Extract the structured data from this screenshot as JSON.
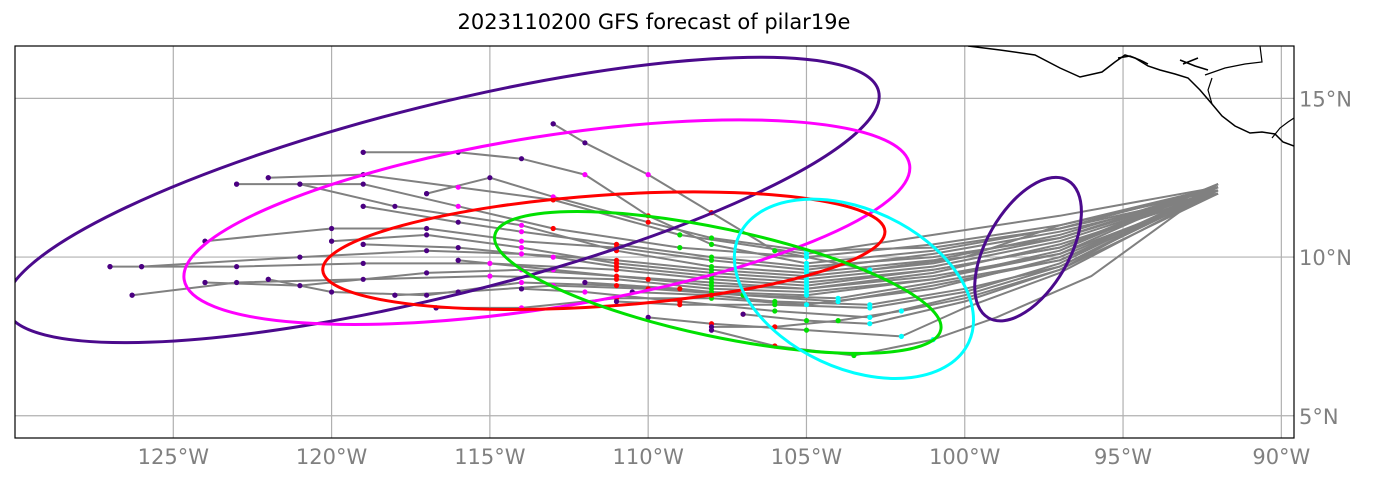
{
  "title": "2023110200 GFS forecast of pilar19e",
  "axes": {
    "lon_range": [
      -130,
      -89.6
    ],
    "lat_range": [
      4.3,
      16.65
    ],
    "x_ticks": [
      {
        "lon": -125,
        "label": "125°W"
      },
      {
        "lon": -120,
        "label": "120°W"
      },
      {
        "lon": -115,
        "label": "115°W"
      },
      {
        "lon": -110,
        "label": "110°W"
      },
      {
        "lon": -105,
        "label": "105°W"
      },
      {
        "lon": -100,
        "label": "100°W"
      },
      {
        "lon": -95,
        "label": "95°W"
      },
      {
        "lon": -90,
        "label": "90°W"
      }
    ],
    "y_ticks": [
      {
        "lat": 5,
        "label": "5°N"
      },
      {
        "lat": 10,
        "label": "10°N"
      },
      {
        "lat": 15,
        "label": "15°N"
      }
    ],
    "grid": true
  },
  "colors": {
    "track": "#808080",
    "grid": "#b0b0b0",
    "coast": "#000000"
  },
  "chart_data": {
    "type": "map",
    "tracks": [
      [
        [
          -92,
          12.2
        ],
        [
          -97,
          11.3
        ],
        [
          -101,
          10.7
        ],
        [
          -105,
          10.1
        ],
        [
          -109,
          10.7
        ],
        [
          -113,
          11.8
        ],
        [
          -116,
          12.2
        ],
        [
          -119,
          12.6
        ],
        [
          -122,
          12.5
        ]
      ],
      [
        [
          -92,
          12.1
        ],
        [
          -97,
          11.0
        ],
        [
          -101,
          10.4
        ],
        [
          -105,
          10.0
        ],
        [
          -109,
          10.3
        ],
        [
          -113,
          10.9
        ],
        [
          -116,
          11.6
        ],
        [
          -119,
          12.3
        ],
        [
          -123,
          12.3
        ]
      ],
      [
        [
          -92,
          12.0
        ],
        [
          -97,
          10.8
        ],
        [
          -101,
          10.1
        ],
        [
          -105,
          9.6
        ],
        [
          -108,
          9.9
        ],
        [
          -111,
          10.3
        ],
        [
          -114,
          10.5
        ],
        [
          -117,
          10.9
        ],
        [
          -120,
          10.9
        ],
        [
          -124,
          10.5
        ]
      ],
      [
        [
          -92,
          12.2
        ],
        [
          -97,
          10.6
        ],
        [
          -101,
          9.8
        ],
        [
          -105,
          9.4
        ],
        [
          -108,
          9.6
        ],
        [
          -111,
          9.9
        ],
        [
          -114,
          10.1
        ],
        [
          -117,
          10.2
        ],
        [
          -121,
          10.0
        ],
        [
          -126,
          9.7
        ]
      ],
      [
        [
          -92,
          12.1
        ],
        [
          -97,
          10.3
        ],
        [
          -101,
          9.6
        ],
        [
          -105,
          9.1
        ],
        [
          -108,
          9.3
        ],
        [
          -111,
          9.6
        ],
        [
          -115,
          9.8
        ],
        [
          -119,
          9.8
        ],
        [
          -123,
          9.7
        ],
        [
          -127,
          9.7
        ]
      ],
      [
        [
          -92,
          12.3
        ],
        [
          -97,
          10.1
        ],
        [
          -101,
          9.3
        ],
        [
          -105,
          8.9
        ],
        [
          -108,
          9.0
        ],
        [
          -111,
          9.3
        ],
        [
          -115,
          9.4
        ],
        [
          -119,
          9.3
        ],
        [
          -123,
          9.2
        ],
        [
          -126.3,
          8.8
        ]
      ],
      [
        [
          -92,
          12.0
        ],
        [
          -97,
          9.9
        ],
        [
          -101,
          9.1
        ],
        [
          -104,
          8.6
        ],
        [
          -107,
          8.8
        ],
        [
          -110,
          9.0
        ],
        [
          -113,
          9.1
        ],
        [
          -116,
          8.9
        ],
        [
          -118,
          8.8
        ]
      ],
      [
        [
          -92,
          12.2
        ],
        [
          -97,
          9.7
        ],
        [
          -100,
          8.8
        ],
        [
          -103,
          8.1
        ],
        [
          -106,
          8.3
        ],
        [
          -109,
          8.6
        ],
        [
          -112,
          8.9
        ],
        [
          -114,
          9.0
        ]
      ],
      [
        [
          -92,
          12.1
        ],
        [
          -97,
          9.5
        ],
        [
          -100,
          8.4
        ],
        [
          -102,
          7.5
        ],
        [
          -105,
          7.7
        ],
        [
          -108,
          7.9
        ],
        [
          -110,
          8.1
        ]
      ],
      [
        [
          -92,
          12.3
        ],
        [
          -96,
          9.4
        ],
        [
          -99,
          8.1
        ],
        [
          -101,
          7.4
        ],
        [
          -103.5,
          6.9
        ],
        [
          -106,
          7.2
        ],
        [
          -108,
          7.7
        ]
      ],
      [
        [
          -92,
          12.2
        ],
        [
          -97,
          11.0
        ],
        [
          -100,
          10.0
        ],
        [
          -103,
          9.6
        ],
        [
          -106,
          10.2
        ],
        [
          -108,
          11.4
        ],
        [
          -110,
          12.6
        ],
        [
          -112,
          13.6
        ],
        [
          -113,
          14.2
        ]
      ],
      [
        [
          -92,
          12.0
        ],
        [
          -97,
          10.9
        ],
        [
          -101,
          10.2
        ],
        [
          -105,
          9.8
        ],
        [
          -108,
          10.4
        ],
        [
          -110,
          11.3
        ],
        [
          -112,
          12.6
        ],
        [
          -114,
          13.1
        ],
        [
          -116,
          13.3
        ],
        [
          -119,
          13.3
        ]
      ],
      [
        [
          -92,
          12.2
        ],
        [
          -97,
          10.7
        ],
        [
          -101,
          9.9
        ],
        [
          -105,
          9.5
        ],
        [
          -108,
          9.7
        ],
        [
          -111,
          10.2
        ],
        [
          -114,
          11.0
        ],
        [
          -118,
          11.6
        ],
        [
          -121,
          12.3
        ]
      ],
      [
        [
          -92,
          12.1
        ],
        [
          -97,
          10.5
        ],
        [
          -101,
          9.7
        ],
        [
          -105,
          9.3
        ],
        [
          -108,
          9.5
        ],
        [
          -111,
          9.8
        ],
        [
          -114,
          10.3
        ],
        [
          -117,
          10.7
        ],
        [
          -120,
          10.5
        ]
      ],
      [
        [
          -92,
          12.0
        ],
        [
          -97,
          10.4
        ],
        [
          -101,
          9.5
        ],
        [
          -105,
          9.0
        ],
        [
          -108,
          9.2
        ],
        [
          -111,
          9.4
        ],
        [
          -114,
          9.6
        ],
        [
          -117,
          9.5
        ],
        [
          -121,
          9.1
        ],
        [
          -124,
          9.2
        ]
      ],
      [
        [
          -92,
          12.3
        ],
        [
          -97,
          10.2
        ],
        [
          -101,
          9.3
        ],
        [
          -105,
          8.8
        ],
        [
          -108,
          8.9
        ],
        [
          -111,
          9.1
        ],
        [
          -114,
          9.2
        ],
        [
          -117,
          8.8
        ],
        [
          -120,
          8.9
        ],
        [
          -122,
          9.3
        ]
      ],
      [
        [
          -92,
          12.1
        ],
        [
          -97,
          10.0
        ],
        [
          -101,
          9.0
        ],
        [
          -105,
          8.5
        ],
        [
          -108,
          8.7
        ],
        [
          -111,
          8.7
        ],
        [
          -114,
          8.4
        ],
        [
          -116.7,
          8.4
        ]
      ],
      [
        [
          -92,
          12.2
        ],
        [
          -97,
          9.8
        ],
        [
          -100,
          8.9
        ],
        [
          -103,
          8.4
        ],
        [
          -106,
          8.5
        ],
        [
          -109,
          8.5
        ],
        [
          -111,
          8.6
        ]
      ],
      [
        [
          -92,
          12.0
        ],
        [
          -97,
          9.6
        ],
        [
          -100,
          8.6
        ],
        [
          -103,
          7.9
        ],
        [
          -105,
          8.0
        ],
        [
          -107,
          8.2
        ]
      ],
      [
        [
          -92,
          12.2
        ],
        [
          -97,
          10.9
        ],
        [
          -101,
          10.3
        ],
        [
          -105,
          10.2
        ],
        [
          -108,
          10.6
        ],
        [
          -110,
          11.1
        ],
        [
          -113,
          11.9
        ],
        [
          -115,
          12.5
        ],
        [
          -117,
          12.0
        ]
      ],
      [
        [
          -92,
          12.1
        ],
        [
          -97,
          10.6
        ],
        [
          -101,
          10.0
        ],
        [
          -105,
          9.7
        ],
        [
          -108,
          10.0
        ],
        [
          -111,
          10.4
        ],
        [
          -114,
          10.8
        ],
        [
          -116,
          11.1
        ],
        [
          -119,
          11.6
        ]
      ],
      [
        [
          -92,
          12.3
        ],
        [
          -97,
          10.3
        ],
        [
          -101,
          9.6
        ],
        [
          -105,
          9.2
        ],
        [
          -108,
          9.4
        ],
        [
          -111,
          9.7
        ],
        [
          -113,
          10.0
        ],
        [
          -116,
          10.3
        ],
        [
          -119,
          10.4
        ]
      ],
      [
        [
          -92,
          12.0
        ],
        [
          -97,
          10.1
        ],
        [
          -101,
          9.4
        ],
        [
          -105,
          9.0
        ],
        [
          -108,
          9.1
        ],
        [
          -110,
          9.3
        ],
        [
          -113,
          9.6
        ],
        [
          -116,
          9.9
        ]
      ],
      [
        [
          -92,
          12.2
        ],
        [
          -97,
          9.9
        ],
        [
          -101,
          9.2
        ],
        [
          -104,
          8.7
        ],
        [
          -107,
          8.8
        ],
        [
          -109,
          9.0
        ],
        [
          -112,
          9.2
        ]
      ],
      [
        [
          -92,
          12.1
        ],
        [
          -97,
          9.7
        ],
        [
          -100,
          9.0
        ],
        [
          -103,
          8.5
        ],
        [
          -106,
          8.6
        ],
        [
          -108,
          8.8
        ],
        [
          -110.5,
          8.9
        ]
      ],
      [
        [
          -92,
          12.3
        ],
        [
          -97,
          9.6
        ],
        [
          -100,
          8.7
        ],
        [
          -102,
          8.3
        ],
        [
          -104,
          8.0
        ],
        [
          -106,
          7.8
        ],
        [
          -108,
          7.8
        ]
      ]
    ],
    "points": {
      "indigo": "#4b0082",
      "magenta": "#ff00ff",
      "red": "#ff0000",
      "lime": "#00e000",
      "cyan": "#00ffff"
    },
    "ellipses": [
      {
        "color": "#4b0a8c",
        "cx": -116.5,
        "cy": 11.8,
        "rx": 14.2,
        "ry": 3.0,
        "angle": -14
      },
      {
        "color": "#ff00ff",
        "cx": -113.2,
        "cy": 11.1,
        "rx": 11.6,
        "ry": 2.7,
        "angle": -9
      },
      {
        "color": "#ff0000",
        "cx": -111.4,
        "cy": 10.2,
        "rx": 8.9,
        "ry": 1.75,
        "angle": -4
      },
      {
        "color": "#00e000",
        "cx": -107.8,
        "cy": 9.2,
        "rx": 7.2,
        "ry": 1.7,
        "angle": 12
      },
      {
        "color": "#00ffff",
        "cx": -103.5,
        "cy": 9.0,
        "rx": 4.0,
        "ry": 2.5,
        "angle": 25
      },
      {
        "color": "#4b0a8c",
        "cx": -98.0,
        "cy": 10.25,
        "rx": 1.3,
        "ry": 2.5,
        "angle": 30
      }
    ]
  }
}
